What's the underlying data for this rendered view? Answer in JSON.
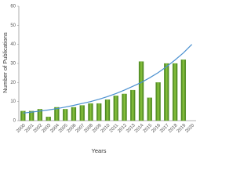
{
  "chart_data": {
    "type": "bar",
    "x_label": "Years",
    "y_label": "Number of Publications",
    "categories": [
      "2000",
      "2001",
      "2002",
      "2003",
      "2004",
      "2005",
      "2006",
      "2007",
      "2008",
      "2009",
      "2010",
      "2011",
      "2012",
      "2013",
      "2014",
      "2015",
      "2016",
      "2017",
      "2018",
      "2019",
      "2020"
    ],
    "values": [
      5,
      5,
      6,
      2,
      7,
      6,
      7,
      8,
      9,
      9,
      11,
      13,
      14,
      16,
      31,
      12,
      20,
      30,
      30,
      32,
      null
    ],
    "color": "#5b9a2c",
    "trend": [
      4,
      4.5,
      5,
      5.6,
      6.3,
      7.1,
      8,
      9,
      10,
      11.2,
      12.6,
      14.2,
      16,
      18,
      20,
      22.5,
      25.2,
      28.3,
      31.8,
      35.6,
      40
    ],
    "trend_color": "#4a90d0",
    "ylim": [
      0,
      60
    ],
    "yticks": [
      0,
      10,
      20,
      30,
      40,
      50,
      60
    ],
    "grid": false
  }
}
